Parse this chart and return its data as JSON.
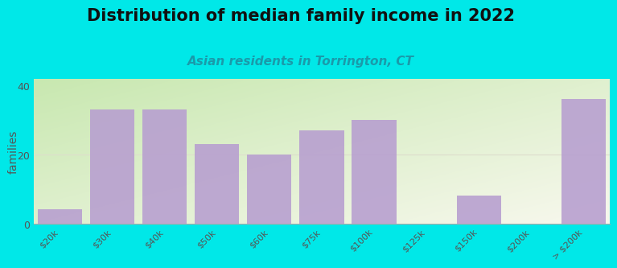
{
  "title": "Distribution of median family income in 2022",
  "subtitle": "Asian residents in Torrington, CT",
  "categories": [
    "$20k",
    "$30k",
    "$40k",
    "$50k",
    "$60k",
    "$75k",
    "$100k",
    "$125k",
    "$150k",
    "$200k",
    "> $200k"
  ],
  "values": [
    4,
    33,
    33,
    23,
    20,
    27,
    30,
    0,
    8,
    0,
    36
  ],
  "bar_color": "#b8a0d0",
  "ylabel": "families",
  "ylim": [
    0,
    42
  ],
  "yticks": [
    0,
    20,
    40
  ],
  "bg_color_topleft": "#c8e8b0",
  "bg_color_bottomright": "#f8f8ee",
  "outer_bg": "#00e8e8",
  "title_fontsize": 15,
  "subtitle_fontsize": 11,
  "subtitle_color": "#1a9aaa",
  "tick_color": "#555555"
}
